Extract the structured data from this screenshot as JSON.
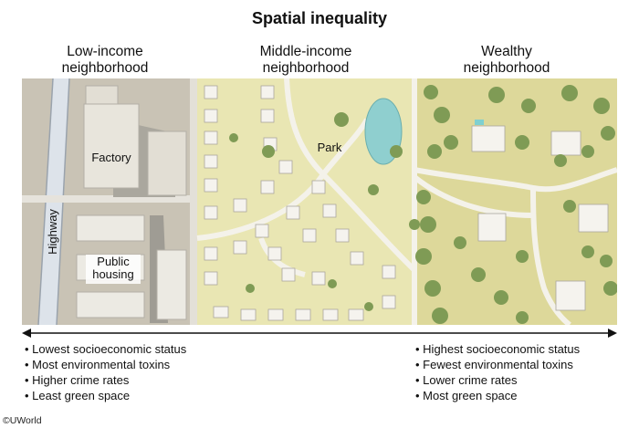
{
  "title": "Spatial inequality",
  "columns": {
    "low": [
      "Low-income",
      "neighborhood"
    ],
    "middle": [
      "Middle-income",
      "neighborhood"
    ],
    "wealthy": [
      "Wealthy",
      "neighborhood"
    ]
  },
  "map_labels": {
    "highway": "Highway",
    "factory": "Factory",
    "public_housing": [
      "Public",
      "housing"
    ],
    "park": "Park"
  },
  "left_bullets": [
    "Lowest socioeconomic status",
    "Most environmental toxins",
    "Higher crime rates",
    "Least green space"
  ],
  "right_bullets": [
    "Highest socioeconomic status",
    "Fewest environmental toxins",
    "Lower crime rates",
    "Most green space"
  ],
  "credit": "©UWorld"
}
